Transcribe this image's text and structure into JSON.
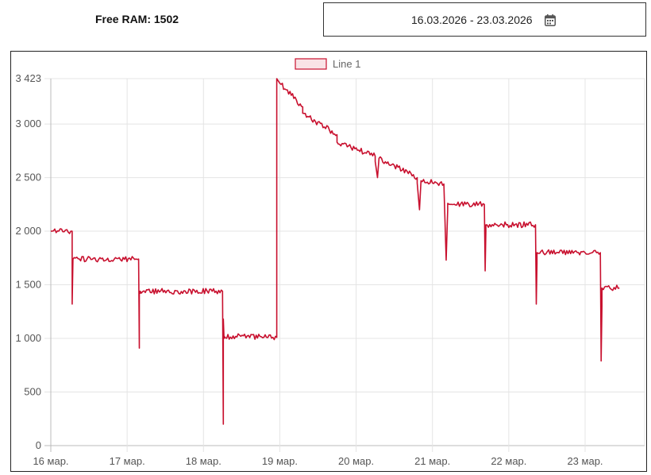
{
  "header": {
    "free_ram_label": "Free RAM: 1502",
    "date_range": "16.03.2026 - 23.03.2026",
    "calendar_icon": "calendar-icon"
  },
  "colors": {
    "line": "#c8102e",
    "grid": "#e4e4e4",
    "axis_text": "#555555"
  },
  "chart_data": {
    "type": "line",
    "legend": {
      "placement": "top-center",
      "entries": [
        "Line 1"
      ]
    },
    "grid": true,
    "ylim": [
      0,
      3423
    ],
    "xlim": [
      0,
      7.78
    ],
    "y_ticks": [
      {
        "v": 0,
        "label": "0"
      },
      {
        "v": 500,
        "label": "500"
      },
      {
        "v": 1000,
        "label": "1 000"
      },
      {
        "v": 1500,
        "label": "1 500"
      },
      {
        "v": 2000,
        "label": "2 000"
      },
      {
        "v": 2500,
        "label": "2 500"
      },
      {
        "v": 3000,
        "label": "3 000"
      },
      {
        "v": 3423,
        "label": "3 423"
      }
    ],
    "x_ticks": [
      {
        "v": 0,
        "label": "16 мар."
      },
      {
        "v": 1,
        "label": "17 мар."
      },
      {
        "v": 2,
        "label": "18 мар."
      },
      {
        "v": 3,
        "label": "19 мар."
      },
      {
        "v": 4,
        "label": "20 мар."
      },
      {
        "v": 5,
        "label": "21 мар."
      },
      {
        "v": 6,
        "label": "22 мар."
      },
      {
        "v": 7,
        "label": "23 мар."
      }
    ],
    "series": [
      {
        "name": "Line 1",
        "x": [
          0.0,
          0.28,
          0.28,
          0.29,
          0.29,
          1.15,
          1.16,
          1.16,
          1.17,
          1.17,
          2.25,
          2.26,
          2.26,
          2.27,
          2.27,
          2.96,
          2.96,
          3.0,
          3.3,
          3.3,
          3.75,
          3.75,
          4.25,
          4.25,
          4.28,
          4.3,
          4.8,
          4.8,
          4.83,
          4.85,
          5.15,
          5.18,
          5.2,
          5.2,
          5.22,
          5.25,
          5.68,
          5.69,
          5.7,
          5.7,
          6.35,
          6.36,
          6.37,
          6.37,
          7.2,
          7.21,
          7.22,
          7.22,
          7.45
        ],
        "y": [
          2000,
          2000,
          1320,
          1740,
          1740,
          1740,
          910,
          1420,
          1420,
          1440,
          1440,
          200,
          1180,
          1000,
          1020,
          1010,
          3423,
          3380,
          3160,
          3100,
          2900,
          2830,
          2700,
          2650,
          2500,
          2680,
          2500,
          2450,
          2200,
          2470,
          2440,
          1730,
          2200,
          2260,
          2250,
          2250,
          2250,
          1630,
          2000,
          2060,
          2060,
          1320,
          1700,
          1800,
          1800,
          790,
          1300,
          1470,
          1470
        ]
      }
    ]
  }
}
